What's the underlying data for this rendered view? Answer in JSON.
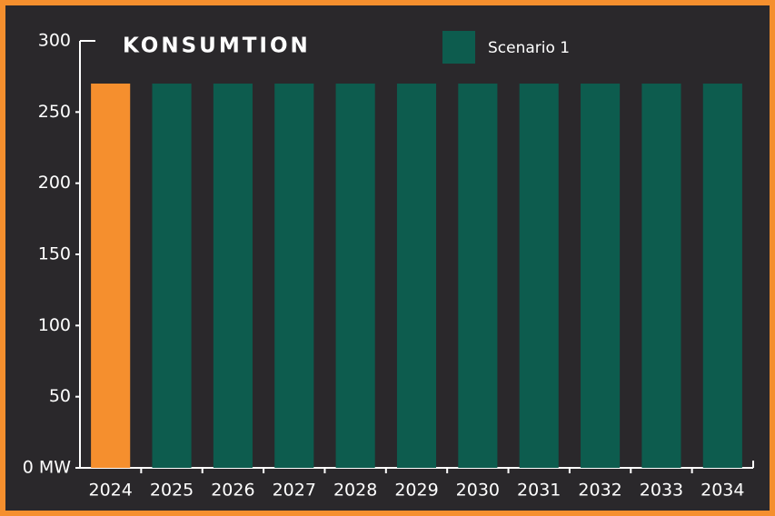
{
  "chart_data": {
    "type": "bar",
    "title": "KONSUMTION",
    "categories": [
      "2024",
      "2025",
      "2026",
      "2027",
      "2028",
      "2029",
      "2030",
      "2031",
      "2032",
      "2033",
      "2034"
    ],
    "series": [
      {
        "name": "Scenario 1",
        "color": "#0d5c4e",
        "values": [
          270,
          270,
          270,
          270,
          270,
          270,
          270,
          270,
          270,
          270,
          270
        ]
      }
    ],
    "bar_colors": [
      "#f58f2e",
      "#0d5c4e",
      "#0d5c4e",
      "#0d5c4e",
      "#0d5c4e",
      "#0d5c4e",
      "#0d5c4e",
      "#0d5c4e",
      "#0d5c4e",
      "#0d5c4e",
      "#0d5c4e"
    ],
    "ylim": [
      0,
      300
    ],
    "yticks": [
      {
        "value": 0,
        "label": "0 MW"
      },
      50,
      100,
      150,
      200,
      250,
      300
    ],
    "grid": false
  }
}
